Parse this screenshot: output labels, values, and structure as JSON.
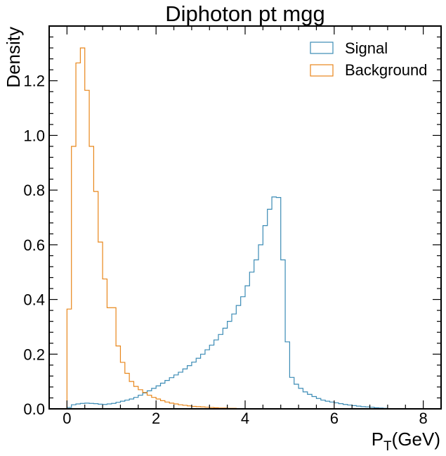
{
  "chart_data": {
    "type": "histogram",
    "title": "Diphoton pt mgg",
    "xlabel_main": "P",
    "xlabel_sub": "T",
    "xlabel_rest": "(GeV)",
    "ylabel": "Density",
    "xlim": [
      -0.4,
      8.4
    ],
    "ylim": [
      0,
      1.4
    ],
    "xticks": [
      0,
      2,
      4,
      6,
      8
    ],
    "yticks": [
      0.0,
      0.2,
      0.4,
      0.6,
      0.8,
      1.0,
      1.2
    ],
    "xtick_labels": [
      "0",
      "2",
      "4",
      "6",
      "8"
    ],
    "ytick_labels": [
      "0.0",
      "0.2",
      "0.4",
      "0.6",
      "0.8",
      "1.0",
      "1.2"
    ],
    "grid": false,
    "legend_position": "top-right",
    "bin_start": 0,
    "bin_width": 0.1,
    "series": [
      {
        "name": "Signal",
        "color": "#3b8bb5",
        "values": [
          0.005,
          0.015,
          0.018,
          0.02,
          0.021,
          0.02,
          0.019,
          0.017,
          0.016,
          0.018,
          0.02,
          0.024,
          0.028,
          0.032,
          0.036,
          0.042,
          0.05,
          0.058,
          0.066,
          0.075,
          0.084,
          0.094,
          0.104,
          0.114,
          0.124,
          0.134,
          0.146,
          0.158,
          0.171,
          0.185,
          0.2,
          0.216,
          0.233,
          0.252,
          0.272,
          0.295,
          0.32,
          0.347,
          0.378,
          0.41,
          0.45,
          0.5,
          0.545,
          0.6,
          0.67,
          0.73,
          0.775,
          0.773,
          0.545,
          0.245,
          0.115,
          0.09,
          0.075,
          0.062,
          0.053,
          0.045,
          0.038,
          0.032,
          0.028,
          0.025,
          0.022,
          0.019,
          0.016,
          0.014,
          0.012,
          0.01,
          0.008,
          0.007,
          0.006,
          0.004,
          0.003,
          0.002,
          0.001,
          0.001
        ]
      },
      {
        "name": "Background",
        "color": "#e8861a",
        "values": [
          0.365,
          0.96,
          1.265,
          1.32,
          1.165,
          0.96,
          0.795,
          0.61,
          0.475,
          0.37,
          0.37,
          0.23,
          0.17,
          0.13,
          0.1,
          0.082,
          0.07,
          0.06,
          0.05,
          0.042,
          0.036,
          0.03,
          0.025,
          0.021,
          0.018,
          0.015,
          0.013,
          0.011,
          0.009,
          0.008,
          0.007,
          0.006,
          0.005,
          0.004,
          0.003,
          0.003,
          0.002,
          0.002,
          0.001
        ]
      }
    ]
  }
}
